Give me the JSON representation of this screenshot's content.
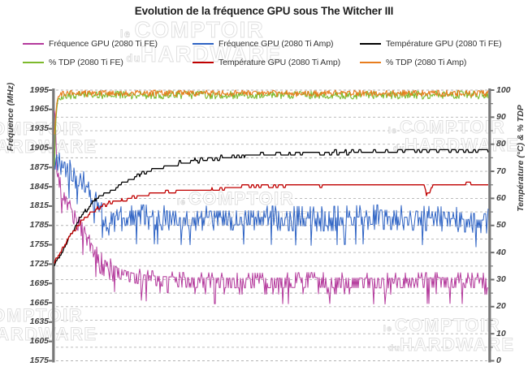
{
  "title": "Evolution de la fréquence GPU sous The Witcher III",
  "watermark": {
    "small1": "le",
    "big1": "COMPTOIR",
    "small2": "du",
    "big2": "HARDWARE"
  },
  "legend": {
    "items": [
      {
        "label": "Fréquence GPU (2080 Ti FE)",
        "color": "#B43A9C"
      },
      {
        "label": "Fréquence GPU (2080 Ti Amp)",
        "color": "#2E63C4"
      },
      {
        "label": "Température GPU  (2080 Ti FE)",
        "color": "#000000"
      },
      {
        "label": "% TDP (2080 Ti FE)",
        "color": "#7DBA2D"
      },
      {
        "label": "Température GPU  (2080 Ti Amp)",
        "color": "#C00000"
      },
      {
        "label": "% TDP (2080 Ti Amp)",
        "color": "#E87D1E"
      }
    ]
  },
  "chart_data": {
    "type": "line",
    "title": "Evolution de la fréquence GPU sous The Witcher III",
    "x_axis": {
      "label": "",
      "tick_labels": []
    },
    "y_left": {
      "title": "Fréquence (MHz)",
      "min": 1575,
      "max": 1995,
      "tick_step": 30,
      "ticks": [
        1995,
        1965,
        1935,
        1905,
        1875,
        1845,
        1815,
        1785,
        1755,
        1725,
        1695,
        1665,
        1635,
        1605,
        1575
      ]
    },
    "y_right": {
      "title": "Température (°C) & % TDP",
      "min": 0,
      "max": 100,
      "tick_step": 10,
      "ticks": [
        100,
        90,
        80,
        70,
        60,
        50,
        40,
        30,
        20,
        10,
        0
      ]
    },
    "grid": {
      "dashed": true,
      "right_axis_step": 5
    },
    "series": [
      {
        "name": "Fréquence GPU (2080 Ti FE)",
        "color": "#B43A9C",
        "axis": "left",
        "unit": "MHz",
        "width": 1,
        "summary": {
          "start": 1978,
          "steady": 1703,
          "steady_range": [
            1665,
            1712
          ]
        },
        "keypoints": [
          [
            0,
            1978
          ],
          [
            0.004,
            1925
          ],
          [
            0.009,
            1868
          ],
          [
            0.014,
            1848
          ],
          [
            0.02,
            1840
          ],
          [
            0.03,
            1824
          ],
          [
            0.045,
            1802
          ],
          [
            0.06,
            1786
          ],
          [
            0.075,
            1769
          ],
          [
            0.09,
            1751
          ],
          [
            0.105,
            1736
          ],
          [
            0.125,
            1727
          ],
          [
            0.15,
            1718
          ],
          [
            0.18,
            1711
          ],
          [
            0.22,
            1707
          ],
          [
            0.3,
            1704
          ],
          [
            0.45,
            1703
          ],
          [
            0.6,
            1704
          ],
          [
            0.75,
            1703
          ],
          [
            0.9,
            1704
          ],
          [
            1,
            1703
          ]
        ],
        "noise": {
          "type": "choice",
          "choices": [
            [
              0.4,
              0
            ],
            [
              0.68,
              -15
            ],
            [
              0.8,
              8
            ],
            [
              0.9,
              -8
            ],
            [
              0.97,
              -25
            ],
            [
              1.01,
              -40
            ]
          ]
        }
      },
      {
        "name": "Fréquence GPU (2080 Ti Amp)",
        "color": "#2E63C4",
        "axis": "left",
        "unit": "MHz",
        "width": 1,
        "summary": {
          "start": 1896,
          "steady": 1797,
          "steady_range": [
            1750,
            1817
          ]
        },
        "keypoints": [
          [
            0,
            1896
          ],
          [
            0.006,
            1884
          ],
          [
            0.015,
            1876
          ],
          [
            0.03,
            1871
          ],
          [
            0.05,
            1862
          ],
          [
            0.07,
            1849
          ],
          [
            0.085,
            1838
          ],
          [
            0.1,
            1822
          ],
          [
            0.112,
            1806
          ],
          [
            0.125,
            1790
          ],
          [
            0.135,
            1785
          ],
          [
            0.15,
            1796
          ],
          [
            0.2,
            1799
          ],
          [
            0.3,
            1797
          ],
          [
            0.45,
            1798
          ],
          [
            0.6,
            1796
          ],
          [
            0.75,
            1799
          ],
          [
            0.9,
            1796
          ],
          [
            1,
            1793
          ]
        ],
        "noise": {
          "type": "choice",
          "choices": [
            [
              0.34,
              0
            ],
            [
              0.58,
              -12
            ],
            [
              0.76,
              10
            ],
            [
              0.86,
              -20
            ],
            [
              0.95,
              18
            ],
            [
              1.01,
              -42
            ]
          ]
        }
      },
      {
        "name": "Température GPU  (2080 Ti FE)",
        "color": "#000000",
        "axis": "right",
        "unit": "°C",
        "width": 1.3,
        "summary": {
          "start": 35,
          "steady": 78
        },
        "keypoints": [
          [
            0,
            35
          ],
          [
            0.02,
            41
          ],
          [
            0.04,
            47
          ],
          [
            0.06,
            53
          ],
          [
            0.08,
            57
          ],
          [
            0.1,
            60
          ],
          [
            0.13,
            63
          ],
          [
            0.16,
            66
          ],
          [
            0.2,
            69
          ],
          [
            0.24,
            71
          ],
          [
            0.29,
            73
          ],
          [
            0.35,
            74.5
          ],
          [
            0.43,
            75.5
          ],
          [
            0.52,
            76.5
          ],
          [
            0.63,
            77
          ],
          [
            0.78,
            77.3
          ],
          [
            1,
            77.8
          ]
        ],
        "noise": {
          "type": "round",
          "amp": 0.7,
          "hold": 3
        }
      },
      {
        "name": "% TDP (2080 Ti FE)",
        "color": "#7DBA2D",
        "axis": "right",
        "unit": "%",
        "width": 1.1,
        "summary": {
          "start": 72,
          "steady": 98.2,
          "steady_range": [
            96,
            100.5
          ]
        },
        "keypoints": [
          [
            0,
            72
          ],
          [
            0.003,
            88
          ],
          [
            0.007,
            95
          ],
          [
            0.015,
            97.8
          ],
          [
            0.03,
            98.2
          ],
          [
            1,
            98.2
          ]
        ],
        "noise": {
          "type": "uniform",
          "amp": 1.5,
          "max": 100.8
        }
      },
      {
        "name": "Température GPU  (2080 Ti Amp)",
        "color": "#C00000",
        "axis": "right",
        "unit": "°C",
        "width": 1.3,
        "summary": {
          "start": 36,
          "steady": 65,
          "dip": {
            "t": 0.86,
            "value": 61.5
          }
        },
        "keypoints": [
          [
            0,
            36
          ],
          [
            0.02,
            42
          ],
          [
            0.04,
            47
          ],
          [
            0.06,
            51
          ],
          [
            0.08,
            54
          ],
          [
            0.1,
            56.5
          ],
          [
            0.13,
            58.5
          ],
          [
            0.17,
            60
          ],
          [
            0.22,
            61.5
          ],
          [
            0.28,
            62.5
          ],
          [
            0.35,
            63.5
          ],
          [
            0.45,
            64.5
          ],
          [
            0.58,
            64.8
          ],
          [
            0.72,
            65
          ],
          [
            0.85,
            65
          ],
          [
            0.853,
            64.8
          ],
          [
            0.858,
            61.5
          ],
          [
            0.865,
            61.5
          ],
          [
            0.872,
            65
          ],
          [
            1,
            65.3
          ]
        ],
        "noise": {
          "type": "round",
          "amp": 0.45,
          "hold": 3
        }
      },
      {
        "name": "% TDP (2080 Ti Amp)",
        "color": "#E87D1E",
        "axis": "right",
        "unit": "%",
        "width": 1.1,
        "summary": {
          "start": 83,
          "steady": 98.8,
          "steady_range": [
            97,
            100.5
          ]
        },
        "keypoints": [
          [
            0,
            83
          ],
          [
            0.003,
            92
          ],
          [
            0.007,
            97
          ],
          [
            0.015,
            98.6
          ],
          [
            0.03,
            98.8
          ],
          [
            1,
            98.8
          ]
        ],
        "noise": {
          "type": "uniform",
          "amp": 1.2,
          "max": 100.8
        }
      }
    ]
  }
}
